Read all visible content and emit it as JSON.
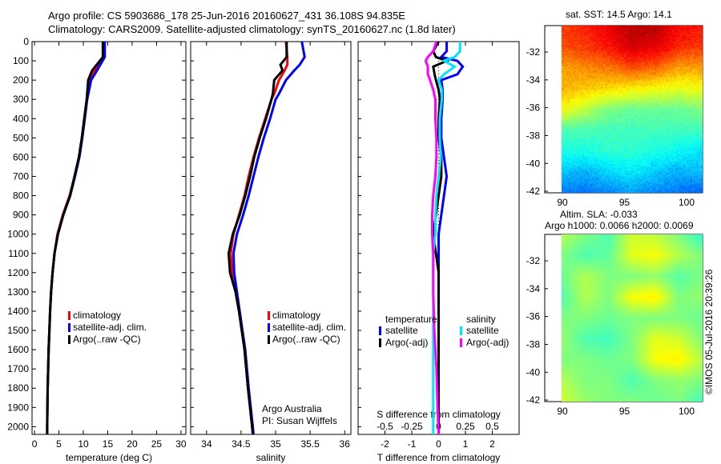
{
  "title": {
    "line1": "Argo profile: CS 5903686_178 25-Jun-2016 20160627_431 36.108S 94.835E",
    "line2": "Climatology: CARS2009. Satellite-adjusted climatology: synTS_20160627.nc (1.8d later)"
  },
  "credit": "©IMOS 05-Jul-2016 20:39:26",
  "colors": {
    "climatology": "#ff0000",
    "satellite": "#0000ff",
    "argo": "#000000",
    "sal_satellite": "#00e5ff",
    "sal_argo": "#ff00ff"
  },
  "chart_data": [
    {
      "type": "line",
      "name": "temperature",
      "xlabel": "temperature (deg C)",
      "ylabel": "",
      "xlim": [
        -0.5,
        31
      ],
      "ylim": [
        2040,
        0
      ],
      "xticks": [
        0,
        5,
        10,
        15,
        20,
        25,
        30
      ],
      "yticks": [
        0,
        100,
        200,
        300,
        400,
        500,
        600,
        700,
        800,
        900,
        1000,
        1100,
        1200,
        1300,
        1400,
        1500,
        1600,
        1700,
        1800,
        1900,
        2000
      ],
      "depth": [
        0,
        80,
        150,
        200,
        300,
        400,
        500,
        600,
        700,
        800,
        900,
        1000,
        1100,
        1200,
        1300,
        1400,
        1600,
        1800,
        2000,
        2040
      ],
      "series": [
        {
          "name": "climatology",
          "color": "#ff0000",
          "values": [
            14.2,
            14.1,
            12.3,
            11.3,
            10.7,
            10.2,
            9.7,
            9.1,
            8.2,
            7.2,
            5.8,
            4.7,
            4.1,
            3.7,
            3.4,
            3.2,
            2.9,
            2.7,
            2.6,
            2.6
          ]
        },
        {
          "name": "satellite-adj. clim.",
          "color": "#0000ff",
          "values": [
            14.4,
            14.4,
            12.8,
            11.6,
            10.8,
            10.3,
            9.8,
            9.2,
            8.3,
            7.3,
            5.9,
            4.8,
            4.1,
            3.7,
            3.4,
            3.2,
            2.9,
            2.7,
            2.6,
            2.6
          ]
        },
        {
          "name": "Argo(..raw -QC)",
          "color": "#000000",
          "values": [
            14.0,
            14.0,
            11.8,
            11.0,
            10.7,
            10.2,
            9.7,
            9.1,
            8.2,
            7.3,
            5.9,
            4.8,
            4.1,
            3.7,
            3.4,
            3.2,
            2.9,
            2.7,
            2.6,
            2.6
          ]
        }
      ],
      "legend": [
        "climatology",
        "satellite-adj. clim.",
        "Argo(..raw -QC)"
      ]
    },
    {
      "type": "line",
      "name": "salinity",
      "xlabel": "salinity",
      "xlim": [
        33.77,
        36.09
      ],
      "ylim": [
        2040,
        0
      ],
      "xticks": [
        34,
        34.5,
        35,
        35.5,
        36
      ],
      "depth": [
        0,
        80,
        120,
        150,
        200,
        270,
        300,
        400,
        500,
        600,
        700,
        800,
        900,
        1000,
        1100,
        1200,
        1300,
        1400,
        1500,
        1600,
        1800,
        2000,
        2040
      ],
      "series": [
        {
          "name": "climatology",
          "color": "#ff0000",
          "values": [
            35.15,
            35.17,
            35.17,
            35.13,
            35.05,
            34.98,
            34.94,
            34.85,
            34.76,
            34.68,
            34.61,
            34.55,
            34.47,
            34.39,
            34.35,
            34.37,
            34.42,
            34.47,
            34.51,
            34.55,
            34.6,
            34.66,
            34.67
          ]
        },
        {
          "name": "satellite-adj. clim.",
          "color": "#0000ff",
          "values": [
            35.38,
            35.42,
            35.35,
            35.27,
            35.15,
            35.05,
            35.0,
            34.92,
            34.83,
            34.75,
            34.68,
            34.61,
            34.53,
            34.44,
            34.39,
            34.4,
            34.44,
            34.48,
            34.52,
            34.56,
            34.61,
            34.67,
            34.68
          ]
        },
        {
          "name": "Argo(..raw -QC)",
          "color": "#000000",
          "values": [
            35.16,
            35.16,
            35.07,
            35.1,
            34.98,
            34.96,
            34.94,
            34.86,
            34.77,
            34.69,
            34.63,
            34.56,
            34.48,
            34.38,
            34.32,
            34.34,
            34.42,
            34.47,
            34.51,
            34.55,
            34.6,
            34.66,
            34.67
          ]
        }
      ],
      "legend": [
        "climatology",
        "satellite-adj. clim.",
        "Argo(..raw -QC)"
      ],
      "annotation": [
        "Argo Australia",
        "PI: Susan Wijffels"
      ]
    },
    {
      "type": "line",
      "name": "differences",
      "xlabel": "T difference from climatology",
      "x2label": "S difference from climatology",
      "xlim": [
        -3,
        3
      ],
      "x2lim": [
        -0.75,
        0.75
      ],
      "ylim": [
        2040,
        0
      ],
      "xticks": [
        -2,
        -1,
        0,
        1,
        2
      ],
      "x2ticks": [
        "-0.5",
        "-0.25",
        "0",
        "0.25",
        "0.5"
      ],
      "depth": [
        0,
        50,
        80,
        100,
        130,
        170,
        200,
        250,
        300,
        400,
        500,
        600,
        700,
        800,
        900,
        1000,
        1100,
        1200,
        1300,
        1500,
        1700,
        1900,
        2040
      ],
      "series": [
        {
          "name": "temperature satellite",
          "color": "#0000ff",
          "values": [
            0.3,
            0.3,
            0.1,
            0.7,
            0.9,
            0.7,
            0.1,
            0.15,
            0.15,
            0.1,
            0.1,
            0.2,
            0.3,
            0.2,
            0.1,
            0.0,
            0.0,
            0.0,
            0.0,
            0.0,
            0.0,
            0.0,
            0.0
          ]
        },
        {
          "name": "temperature Argo(-adj)",
          "color": "#000000",
          "values": [
            0.0,
            -0.2,
            -0.1,
            0.3,
            -0.2,
            -0.15,
            -0.1,
            0.0,
            0.05,
            0.0,
            0.0,
            0.1,
            0.1,
            0.0,
            -0.1,
            -0.2,
            -0.1,
            0.0,
            0.0,
            0.0,
            0.0,
            0.0,
            0.0
          ]
        },
        {
          "name": "salinity satellite",
          "color": "#00e5ff",
          "values": [
            0.2,
            0.2,
            0.15,
            0.05,
            0.15,
            0.05,
            0.0,
            0.03,
            0.03,
            0.01,
            0.01,
            0.02,
            0.0,
            -0.02,
            -0.03,
            -0.03,
            -0.05,
            -0.05,
            -0.05,
            -0.05,
            -0.05,
            -0.05,
            -0.05
          ]
        },
        {
          "name": "salinity Argo(-adj)",
          "color": "#ff00ff",
          "values": [
            -0.02,
            -0.05,
            -0.1,
            -0.12,
            -0.1,
            -0.1,
            -0.08,
            -0.05,
            -0.03,
            -0.03,
            -0.02,
            -0.02,
            -0.03,
            -0.05,
            -0.06,
            -0.06,
            -0.05,
            -0.05,
            -0.05,
            -0.04,
            -0.02,
            -0.01,
            0.0
          ]
        }
      ],
      "legend": {
        "temperature_title": "temperature",
        "salinity_title": "salinity",
        "items": [
          "satellite",
          "Argo(-adj)",
          "satellite",
          "Argo(-adj)"
        ]
      }
    },
    {
      "type": "heatmap",
      "name": "sst-map",
      "title": "sat. SST: 14.5 Argo: 14.1",
      "xticks": [
        90,
        95,
        100
      ],
      "yticks": [
        -32,
        -34,
        -36,
        -38,
        -40,
        -42
      ],
      "grid": [
        [
          0.82,
          0.85,
          0.9,
          0.95,
          0.95,
          0.88,
          0.85
        ],
        [
          0.8,
          0.82,
          0.86,
          0.92,
          0.9,
          0.84,
          0.82
        ],
        [
          0.72,
          0.74,
          0.76,
          0.8,
          0.78,
          0.72,
          0.72
        ],
        [
          0.7,
          0.68,
          0.66,
          0.64,
          0.62,
          0.6,
          0.62
        ],
        [
          0.62,
          0.56,
          0.5,
          0.48,
          0.48,
          0.48,
          0.5
        ],
        [
          0.45,
          0.45,
          0.44,
          0.44,
          0.44,
          0.44,
          0.44
        ],
        [
          0.4,
          0.4,
          0.42,
          0.42,
          0.4,
          0.38,
          0.35
        ],
        [
          0.32,
          0.3,
          0.34,
          0.36,
          0.32,
          0.3,
          0.32
        ],
        [
          0.25,
          0.24,
          0.26,
          0.28,
          0.26,
          0.24,
          0.22
        ]
      ]
    },
    {
      "type": "heatmap",
      "name": "sla-map",
      "title": "Altim. SLA: -0.033",
      "subtitle": "Argo h1000: 0.0066 h2000: 0.0069",
      "xticks": [
        90,
        95,
        100
      ],
      "yticks": [
        -32,
        -34,
        -36,
        -38,
        -40,
        -42
      ],
      "grid": [
        [
          0.55,
          0.5,
          0.45,
          0.58,
          0.56,
          0.5,
          0.42
        ],
        [
          0.5,
          0.45,
          0.47,
          0.6,
          0.62,
          0.55,
          0.5
        ],
        [
          0.48,
          0.55,
          0.5,
          0.5,
          0.52,
          0.46,
          0.5
        ],
        [
          0.45,
          0.55,
          0.5,
          0.62,
          0.64,
          0.5,
          0.52
        ],
        [
          0.5,
          0.5,
          0.48,
          0.5,
          0.5,
          0.5,
          0.48
        ],
        [
          0.52,
          0.45,
          0.44,
          0.5,
          0.6,
          0.58,
          0.5
        ],
        [
          0.5,
          0.5,
          0.48,
          0.5,
          0.62,
          0.64,
          0.55
        ],
        [
          0.55,
          0.5,
          0.5,
          0.45,
          0.5,
          0.52,
          0.5
        ],
        [
          0.58,
          0.52,
          0.5,
          0.5,
          0.48,
          0.5,
          0.44
        ]
      ]
    }
  ]
}
